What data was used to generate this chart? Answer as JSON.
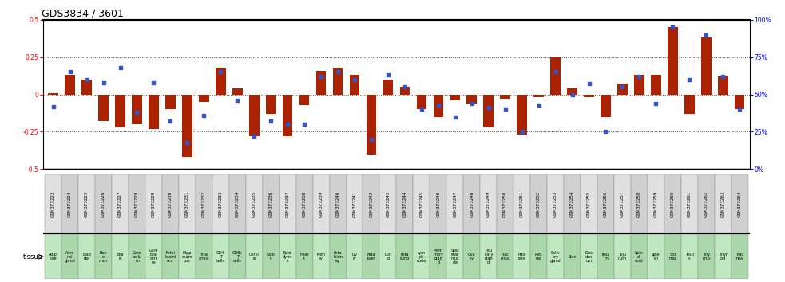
{
  "title": "GDS3834 / 3601",
  "gsm_ids": [
    "GSM373223",
    "GSM373224",
    "GSM373225",
    "GSM373226",
    "GSM373227",
    "GSM373228",
    "GSM373229",
    "GSM373230",
    "GSM373231",
    "GSM373232",
    "GSM373233",
    "GSM373234",
    "GSM373235",
    "GSM373236",
    "GSM373237",
    "GSM373238",
    "GSM373239",
    "GSM373240",
    "GSM373241",
    "GSM373242",
    "GSM373243",
    "GSM373244",
    "GSM373245",
    "GSM373246",
    "GSM373247",
    "GSM373248",
    "GSM373249",
    "GSM373250",
    "GSM373251",
    "GSM373252",
    "GSM373253",
    "GSM373254",
    "GSM373255",
    "GSM373256",
    "GSM373257",
    "GSM373258",
    "GSM373259",
    "GSM373260",
    "GSM373261",
    "GSM373262",
    "GSM373263",
    "GSM373264"
  ],
  "tissues_short": [
    "Adip\nose",
    "Adre\nnal\ngland",
    "Blad\nder",
    "Bon\ne\nmarr",
    "Bra\nin",
    "Cere\nbellu\nm",
    "Cere\nbral\ncort\nex",
    "Fetal\nbrainl\noca",
    "Hipp\nocam\npus",
    "Thal\namus",
    "CD4\nT\ncells",
    "CD8s\nT\ncells",
    "Cervi\nix",
    "Colo\nn",
    "Epid\ndymi\ns",
    "Hear\nt",
    "Kidn\ney",
    "Feta\nlkidn\ney",
    "Liv\ner",
    "Feta\nliver",
    "Lun\ng",
    "Feta\nllung",
    "Lym\nph\nnode",
    "Mam\nmary\nglan\nd",
    "Sket\netal\nmus\ncle",
    "Ova\nry",
    "Pitu\nitary\nglan\nd",
    "Plac\nenta",
    "Pros\ntate",
    "Reti\nnal",
    "Saliv\nary\ngland",
    "Skin",
    "Duo\nden\num",
    "Ileu\nm",
    "Jeju\nnum",
    "Spin\nal\ncord",
    "Sple\nen",
    "Sto\nmac",
    "Testi\ns",
    "Thy\nmus",
    "Thyr\noid",
    "Trac\nhea"
  ],
  "log10_ratio": [
    0.01,
    0.13,
    0.1,
    -0.18,
    -0.22,
    -0.2,
    -0.23,
    -0.1,
    -0.42,
    -0.05,
    0.18,
    0.04,
    -0.28,
    -0.13,
    -0.28,
    -0.07,
    0.16,
    0.18,
    0.13,
    -0.4,
    0.1,
    0.05,
    -0.1,
    -0.15,
    -0.04,
    -0.06,
    -0.22,
    -0.03,
    -0.27,
    -0.02,
    0.25,
    0.04,
    -0.02,
    -0.15,
    0.07,
    0.13,
    0.13,
    0.45,
    -0.13,
    0.38,
    0.12,
    -0.1
  ],
  "percentile": [
    42,
    65,
    60,
    58,
    68,
    38,
    58,
    32,
    18,
    36,
    65,
    46,
    22,
    32,
    30,
    30,
    62,
    65,
    60,
    20,
    63,
    55,
    40,
    43,
    35,
    44,
    41,
    40,
    25,
    43,
    65,
    50,
    57,
    25,
    55,
    62,
    44,
    95,
    60,
    90,
    62,
    40
  ],
  "bar_color": "#aa2200",
  "square_color": "#3355cc",
  "bg_color": "#ffffff",
  "ylim_left": [
    -0.5,
    0.5
  ],
  "ylim_right": [
    0,
    100
  ],
  "zero_line_color": "#cc2200",
  "dotted_line_color": "#444444",
  "title_fontsize": 9,
  "tick_fontsize": 5.5,
  "gsm_fontsize": 4.0,
  "tissue_fontsize": 3.5,
  "legend_fontsize": 6.5,
  "gsm_colors": [
    "#e0e0e0",
    "#d0d0d0"
  ],
  "tissue_colors": [
    "#c0e8c0",
    "#aad8aa"
  ]
}
